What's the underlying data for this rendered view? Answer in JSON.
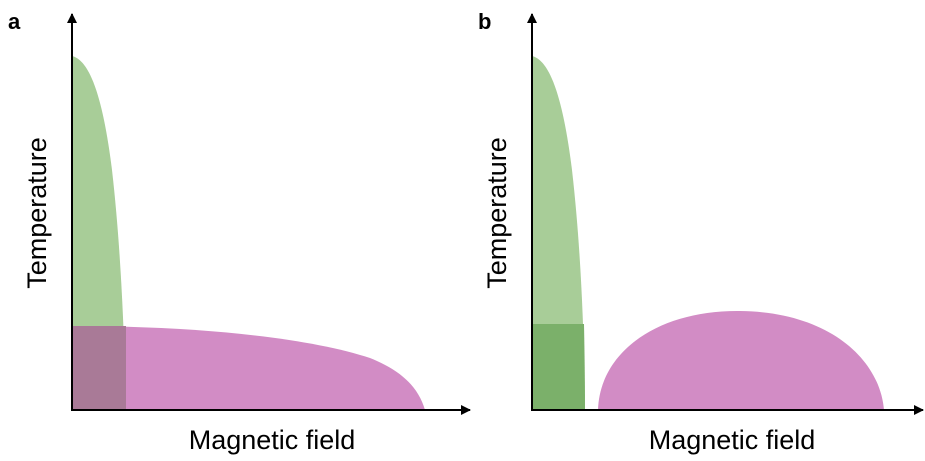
{
  "panels": [
    {
      "label": "a",
      "xlabel": "Magnetic field",
      "ylabel": "Temperature"
    },
    {
      "label": "b",
      "xlabel": "Magnetic field",
      "ylabel": "Temperature"
    }
  ],
  "colors": {
    "green_region": "#a8cd98",
    "magenta_region": "#d28cc5",
    "overlap_a": "#a97a97",
    "overlap_b": "#7bb06a",
    "axes": "#000000"
  }
}
